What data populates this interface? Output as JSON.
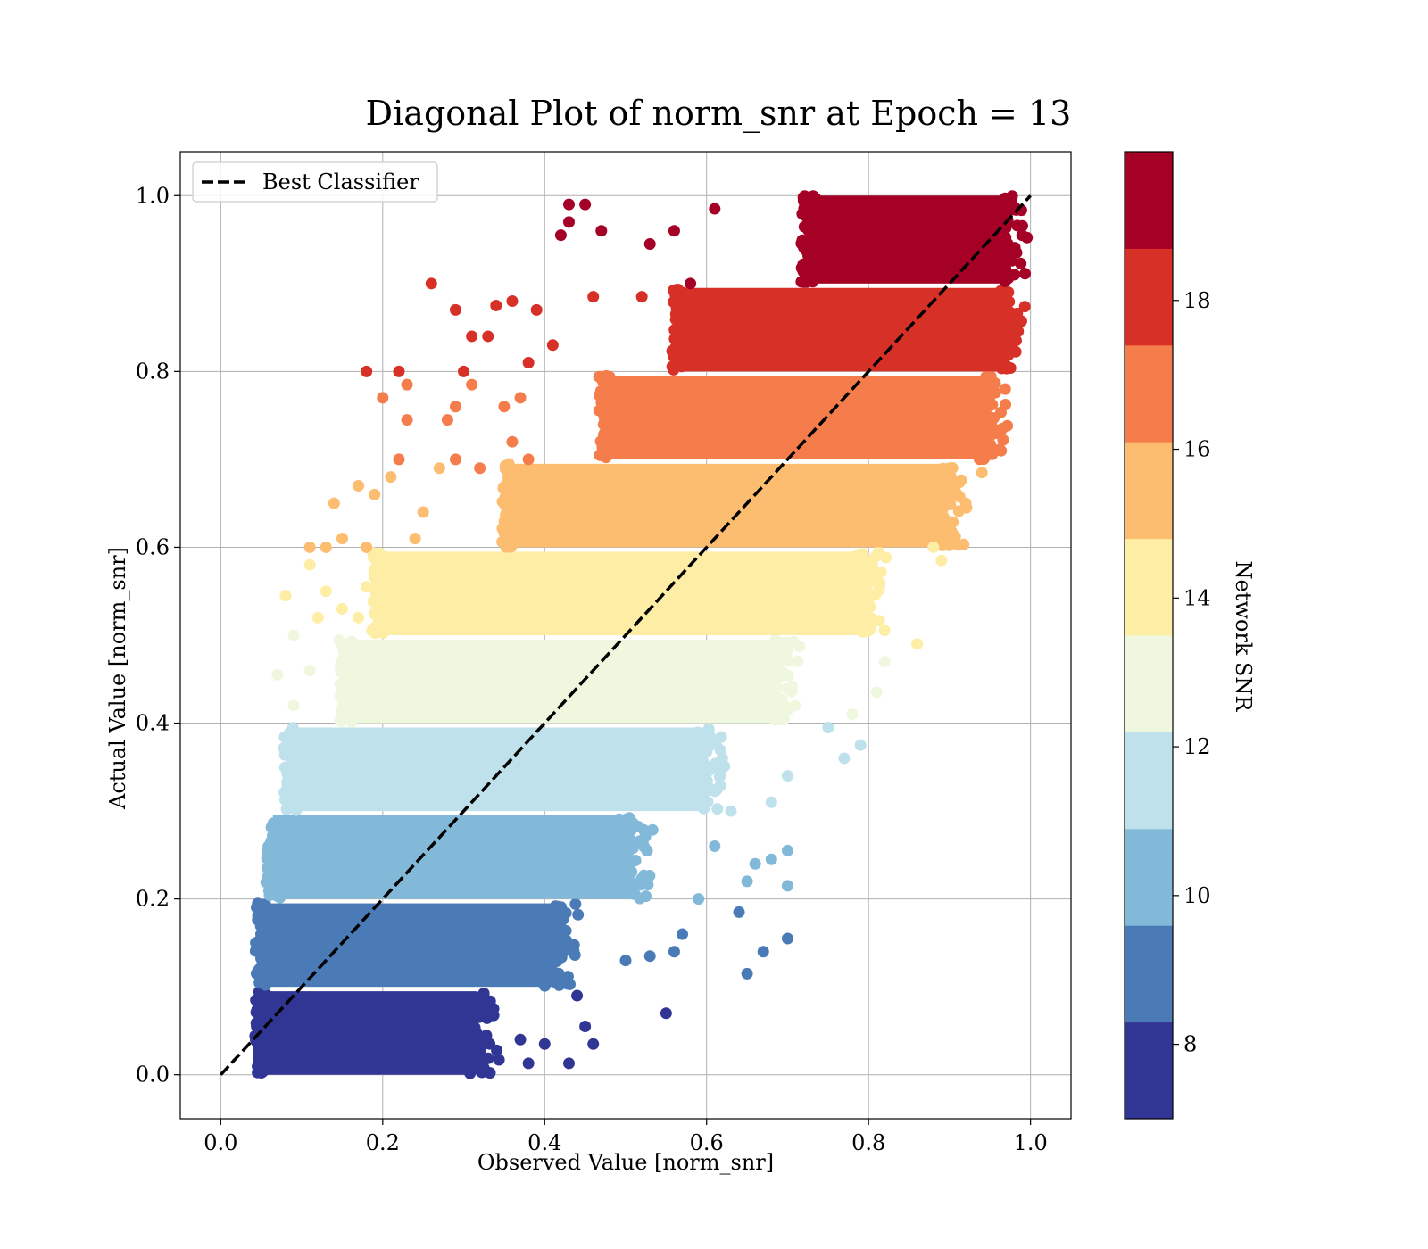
{
  "chart_data": {
    "type": "scatter",
    "title": "Diagonal Plot of norm_snr at Epoch = 13",
    "xlabel": "Observed Value [norm_snr]",
    "ylabel": "Actual Value [norm_snr]",
    "xlim": [
      -0.05,
      1.05
    ],
    "ylim": [
      -0.05,
      1.05
    ],
    "xticks": [
      0.0,
      0.2,
      0.4,
      0.6,
      0.8,
      1.0
    ],
    "yticks": [
      0.0,
      0.2,
      0.4,
      0.6,
      0.8,
      1.0
    ],
    "xtick_labels": [
      "0.0",
      "0.2",
      "0.4",
      "0.6",
      "0.8",
      "1.0"
    ],
    "ytick_labels": [
      "0.0",
      "0.2",
      "0.4",
      "0.6",
      "0.8",
      "1.0"
    ],
    "grid": true,
    "legend": {
      "placement": "top-left",
      "entries": [
        "Best Classifier"
      ]
    },
    "reference_line": {
      "name": "Best Classifier",
      "style": "dashed",
      "color": "#000000",
      "x": [
        0.0,
        1.0
      ],
      "y": [
        0.0,
        1.0
      ]
    },
    "colorbar": {
      "label": "Network SNR",
      "range": [
        7,
        20
      ],
      "ticks": [
        8,
        10,
        12,
        14,
        16,
        18
      ],
      "tick_labels": [
        "8",
        "10",
        "12",
        "14",
        "16",
        "18"
      ],
      "bins": [
        {
          "from": 7.0,
          "to": 8.3,
          "color": "#313695"
        },
        {
          "from": 8.3,
          "to": 9.6,
          "color": "#4a7bb7"
        },
        {
          "from": 9.6,
          "to": 10.9,
          "color": "#82b8d8"
        },
        {
          "from": 10.9,
          "to": 12.2,
          "color": "#bfe1ec"
        },
        {
          "from": 12.2,
          "to": 13.5,
          "color": "#eff8df"
        },
        {
          "from": 13.5,
          "to": 14.8,
          "color": "#feeda5"
        },
        {
          "from": 14.8,
          "to": 16.1,
          "color": "#fdbd71"
        },
        {
          "from": 16.1,
          "to": 17.4,
          "color": "#f57d4b"
        },
        {
          "from": 17.4,
          "to": 18.7,
          "color": "#d73027"
        },
        {
          "from": 18.7,
          "to": 20.0,
          "color": "#a50026"
        }
      ]
    },
    "bands": [
      {
        "snr": 7.65,
        "color": "#313695",
        "y": [
          0.0,
          0.095
        ],
        "x": [
          0.045,
          0.32
        ]
      },
      {
        "snr": 8.95,
        "color": "#4a7bb7",
        "y": [
          0.1,
          0.195
        ],
        "x": [
          0.045,
          0.42
        ]
      },
      {
        "snr": 10.25,
        "color": "#82b8d8",
        "y": [
          0.2,
          0.295
        ],
        "x": [
          0.06,
          0.51
        ]
      },
      {
        "snr": 11.55,
        "color": "#bfe1ec",
        "y": [
          0.3,
          0.395
        ],
        "x": [
          0.08,
          0.6
        ]
      },
      {
        "snr": 12.85,
        "color": "#eff8df",
        "y": [
          0.4,
          0.495
        ],
        "x": [
          0.15,
          0.69
        ]
      },
      {
        "snr": 14.15,
        "color": "#feeda5",
        "y": [
          0.5,
          0.595
        ],
        "x": [
          0.19,
          0.8
        ]
      },
      {
        "snr": 15.45,
        "color": "#fdbd71",
        "y": [
          0.6,
          0.695
        ],
        "x": [
          0.35,
          0.9
        ]
      },
      {
        "snr": 16.75,
        "color": "#f57d4b",
        "y": [
          0.7,
          0.795
        ],
        "x": [
          0.47,
          0.95
        ]
      },
      {
        "snr": 18.05,
        "color": "#d73027",
        "y": [
          0.8,
          0.895
        ],
        "x": [
          0.56,
          0.97
        ]
      },
      {
        "snr": 19.35,
        "color": "#a50026",
        "y": [
          0.9,
          1.0
        ],
        "x": [
          0.72,
          0.975
        ]
      }
    ],
    "outliers": [
      {
        "x": 0.43,
        "y": 0.99,
        "color": "#a50026"
      },
      {
        "x": 0.45,
        "y": 0.99,
        "color": "#a50026"
      },
      {
        "x": 0.43,
        "y": 0.97,
        "color": "#a50026"
      },
      {
        "x": 0.42,
        "y": 0.955,
        "color": "#a50026"
      },
      {
        "x": 0.47,
        "y": 0.96,
        "color": "#a50026"
      },
      {
        "x": 0.53,
        "y": 0.945,
        "color": "#a50026"
      },
      {
        "x": 0.61,
        "y": 0.985,
        "color": "#a50026"
      },
      {
        "x": 0.56,
        "y": 0.96,
        "color": "#a50026"
      },
      {
        "x": 0.58,
        "y": 0.9,
        "color": "#a50026"
      },
      {
        "x": 0.26,
        "y": 0.9,
        "color": "#d73027"
      },
      {
        "x": 0.29,
        "y": 0.87,
        "color": "#d73027"
      },
      {
        "x": 0.34,
        "y": 0.875,
        "color": "#d73027"
      },
      {
        "x": 0.36,
        "y": 0.88,
        "color": "#d73027"
      },
      {
        "x": 0.31,
        "y": 0.84,
        "color": "#d73027"
      },
      {
        "x": 0.33,
        "y": 0.84,
        "color": "#d73027"
      },
      {
        "x": 0.18,
        "y": 0.8,
        "color": "#d73027"
      },
      {
        "x": 0.22,
        "y": 0.8,
        "color": "#d73027"
      },
      {
        "x": 0.39,
        "y": 0.87,
        "color": "#d73027"
      },
      {
        "x": 0.46,
        "y": 0.885,
        "color": "#d73027"
      },
      {
        "x": 0.52,
        "y": 0.885,
        "color": "#d73027"
      },
      {
        "x": 0.38,
        "y": 0.81,
        "color": "#d73027"
      },
      {
        "x": 0.41,
        "y": 0.83,
        "color": "#d73027"
      },
      {
        "x": 0.3,
        "y": 0.8,
        "color": "#d73027"
      },
      {
        "x": 0.2,
        "y": 0.77,
        "color": "#f57d4b"
      },
      {
        "x": 0.23,
        "y": 0.785,
        "color": "#f57d4b"
      },
      {
        "x": 0.23,
        "y": 0.745,
        "color": "#f57d4b"
      },
      {
        "x": 0.22,
        "y": 0.7,
        "color": "#f57d4b"
      },
      {
        "x": 0.28,
        "y": 0.745,
        "color": "#f57d4b"
      },
      {
        "x": 0.29,
        "y": 0.76,
        "color": "#f57d4b"
      },
      {
        "x": 0.31,
        "y": 0.785,
        "color": "#f57d4b"
      },
      {
        "x": 0.29,
        "y": 0.7,
        "color": "#f57d4b"
      },
      {
        "x": 0.35,
        "y": 0.76,
        "color": "#f57d4b"
      },
      {
        "x": 0.37,
        "y": 0.77,
        "color": "#f57d4b"
      },
      {
        "x": 0.36,
        "y": 0.72,
        "color": "#f57d4b"
      },
      {
        "x": 0.32,
        "y": 0.69,
        "color": "#f57d4b"
      },
      {
        "x": 0.38,
        "y": 0.7,
        "color": "#f57d4b"
      },
      {
        "x": 0.14,
        "y": 0.65,
        "color": "#fdbd71"
      },
      {
        "x": 0.15,
        "y": 0.61,
        "color": "#fdbd71"
      },
      {
        "x": 0.11,
        "y": 0.6,
        "color": "#fdbd71"
      },
      {
        "x": 0.13,
        "y": 0.6,
        "color": "#fdbd71"
      },
      {
        "x": 0.17,
        "y": 0.67,
        "color": "#fdbd71"
      },
      {
        "x": 0.19,
        "y": 0.66,
        "color": "#fdbd71"
      },
      {
        "x": 0.21,
        "y": 0.68,
        "color": "#fdbd71"
      },
      {
        "x": 0.18,
        "y": 0.6,
        "color": "#fdbd71"
      },
      {
        "x": 0.25,
        "y": 0.64,
        "color": "#fdbd71"
      },
      {
        "x": 0.27,
        "y": 0.69,
        "color": "#fdbd71"
      },
      {
        "x": 0.24,
        "y": 0.61,
        "color": "#fdbd71"
      },
      {
        "x": 0.9,
        "y": 0.68,
        "color": "#fdbd71"
      },
      {
        "x": 0.94,
        "y": 0.685,
        "color": "#fdbd71"
      },
      {
        "x": 0.92,
        "y": 0.65,
        "color": "#fdbd71"
      },
      {
        "x": 0.08,
        "y": 0.545,
        "color": "#feeda5"
      },
      {
        "x": 0.11,
        "y": 0.58,
        "color": "#feeda5"
      },
      {
        "x": 0.12,
        "y": 0.52,
        "color": "#feeda5"
      },
      {
        "x": 0.13,
        "y": 0.55,
        "color": "#feeda5"
      },
      {
        "x": 0.15,
        "y": 0.53,
        "color": "#feeda5"
      },
      {
        "x": 0.17,
        "y": 0.52,
        "color": "#feeda5"
      },
      {
        "x": 0.18,
        "y": 0.555,
        "color": "#feeda5"
      },
      {
        "x": 0.89,
        "y": 0.585,
        "color": "#feeda5"
      },
      {
        "x": 0.86,
        "y": 0.49,
        "color": "#feeda5"
      },
      {
        "x": 0.88,
        "y": 0.6,
        "color": "#feeda5"
      },
      {
        "x": 0.07,
        "y": 0.455,
        "color": "#eff8df"
      },
      {
        "x": 0.09,
        "y": 0.5,
        "color": "#eff8df"
      },
      {
        "x": 0.09,
        "y": 0.42,
        "color": "#eff8df"
      },
      {
        "x": 0.11,
        "y": 0.46,
        "color": "#eff8df"
      },
      {
        "x": 0.81,
        "y": 0.435,
        "color": "#eff8df"
      },
      {
        "x": 0.78,
        "y": 0.41,
        "color": "#eff8df"
      },
      {
        "x": 0.82,
        "y": 0.47,
        "color": "#eff8df"
      },
      {
        "x": 0.77,
        "y": 0.36,
        "color": "#bfe1ec"
      },
      {
        "x": 0.79,
        "y": 0.375,
        "color": "#bfe1ec"
      },
      {
        "x": 0.7,
        "y": 0.34,
        "color": "#bfe1ec"
      },
      {
        "x": 0.68,
        "y": 0.31,
        "color": "#bfe1ec"
      },
      {
        "x": 0.63,
        "y": 0.3,
        "color": "#bfe1ec"
      },
      {
        "x": 0.75,
        "y": 0.395,
        "color": "#bfe1ec"
      },
      {
        "x": 0.7,
        "y": 0.255,
        "color": "#82b8d8"
      },
      {
        "x": 0.68,
        "y": 0.245,
        "color": "#82b8d8"
      },
      {
        "x": 0.7,
        "y": 0.215,
        "color": "#82b8d8"
      },
      {
        "x": 0.65,
        "y": 0.22,
        "color": "#82b8d8"
      },
      {
        "x": 0.66,
        "y": 0.24,
        "color": "#82b8d8"
      },
      {
        "x": 0.61,
        "y": 0.26,
        "color": "#82b8d8"
      },
      {
        "x": 0.59,
        "y": 0.2,
        "color": "#82b8d8"
      },
      {
        "x": 0.7,
        "y": 0.155,
        "color": "#4a7bb7"
      },
      {
        "x": 0.67,
        "y": 0.14,
        "color": "#4a7bb7"
      },
      {
        "x": 0.64,
        "y": 0.185,
        "color": "#4a7bb7"
      },
      {
        "x": 0.65,
        "y": 0.115,
        "color": "#4a7bb7"
      },
      {
        "x": 0.57,
        "y": 0.16,
        "color": "#4a7bb7"
      },
      {
        "x": 0.56,
        "y": 0.14,
        "color": "#4a7bb7"
      },
      {
        "x": 0.53,
        "y": 0.135,
        "color": "#4a7bb7"
      },
      {
        "x": 0.5,
        "y": 0.13,
        "color": "#4a7bb7"
      },
      {
        "x": 0.55,
        "y": 0.07,
        "color": "#313695"
      },
      {
        "x": 0.43,
        "y": 0.013,
        "color": "#313695"
      },
      {
        "x": 0.46,
        "y": 0.035,
        "color": "#313695"
      },
      {
        "x": 0.45,
        "y": 0.055,
        "color": "#313695"
      },
      {
        "x": 0.44,
        "y": 0.09,
        "color": "#313695"
      },
      {
        "x": 0.4,
        "y": 0.035,
        "color": "#313695"
      },
      {
        "x": 0.37,
        "y": 0.04,
        "color": "#313695"
      },
      {
        "x": 0.38,
        "y": 0.013,
        "color": "#313695"
      }
    ]
  }
}
